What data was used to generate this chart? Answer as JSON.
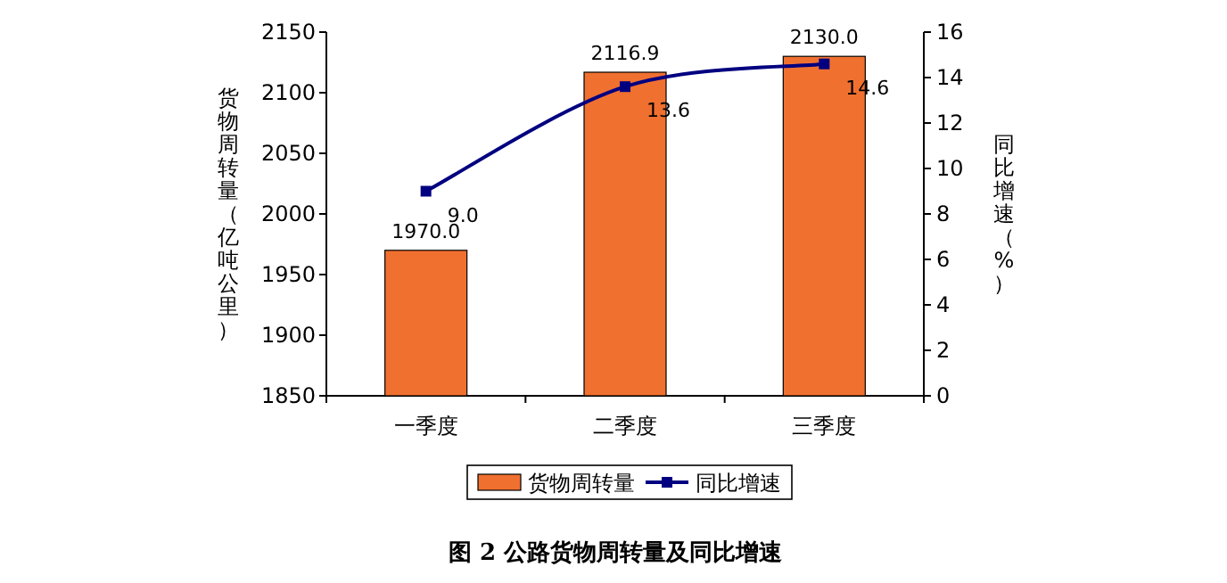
{
  "chart_data": {
    "type": "bar",
    "title": "图 2 公路货物周转量及同比增速",
    "categories": [
      "一季度",
      "二季度",
      "三季度"
    ],
    "series": [
      {
        "name": "货物周转量",
        "color": "#f07030",
        "values": [
          1970.0,
          2116.9,
          2130.0
        ],
        "value_labels": [
          "1970.0",
          "2116.9",
          "2130.0"
        ]
      },
      {
        "name": "同比增速",
        "type": "line",
        "axis": "y2",
        "color": "#000080",
        "values": [
          9.0,
          13.6,
          14.6
        ],
        "value_labels": [
          "9.0",
          "13.6",
          "14.6"
        ]
      }
    ],
    "ylabel": "货物周转量（亿吨公里）",
    "y2label": "同比增速（%）",
    "ylim": [
      1850,
      2150
    ],
    "yticks": [
      1850,
      1900,
      1950,
      2000,
      2050,
      2100,
      2150
    ],
    "y2lim": [
      0,
      16
    ],
    "y2ticks": [
      0,
      2,
      4,
      6,
      8,
      10,
      12,
      14,
      16
    ],
    "marker": "square",
    "legend": "bottom"
  }
}
